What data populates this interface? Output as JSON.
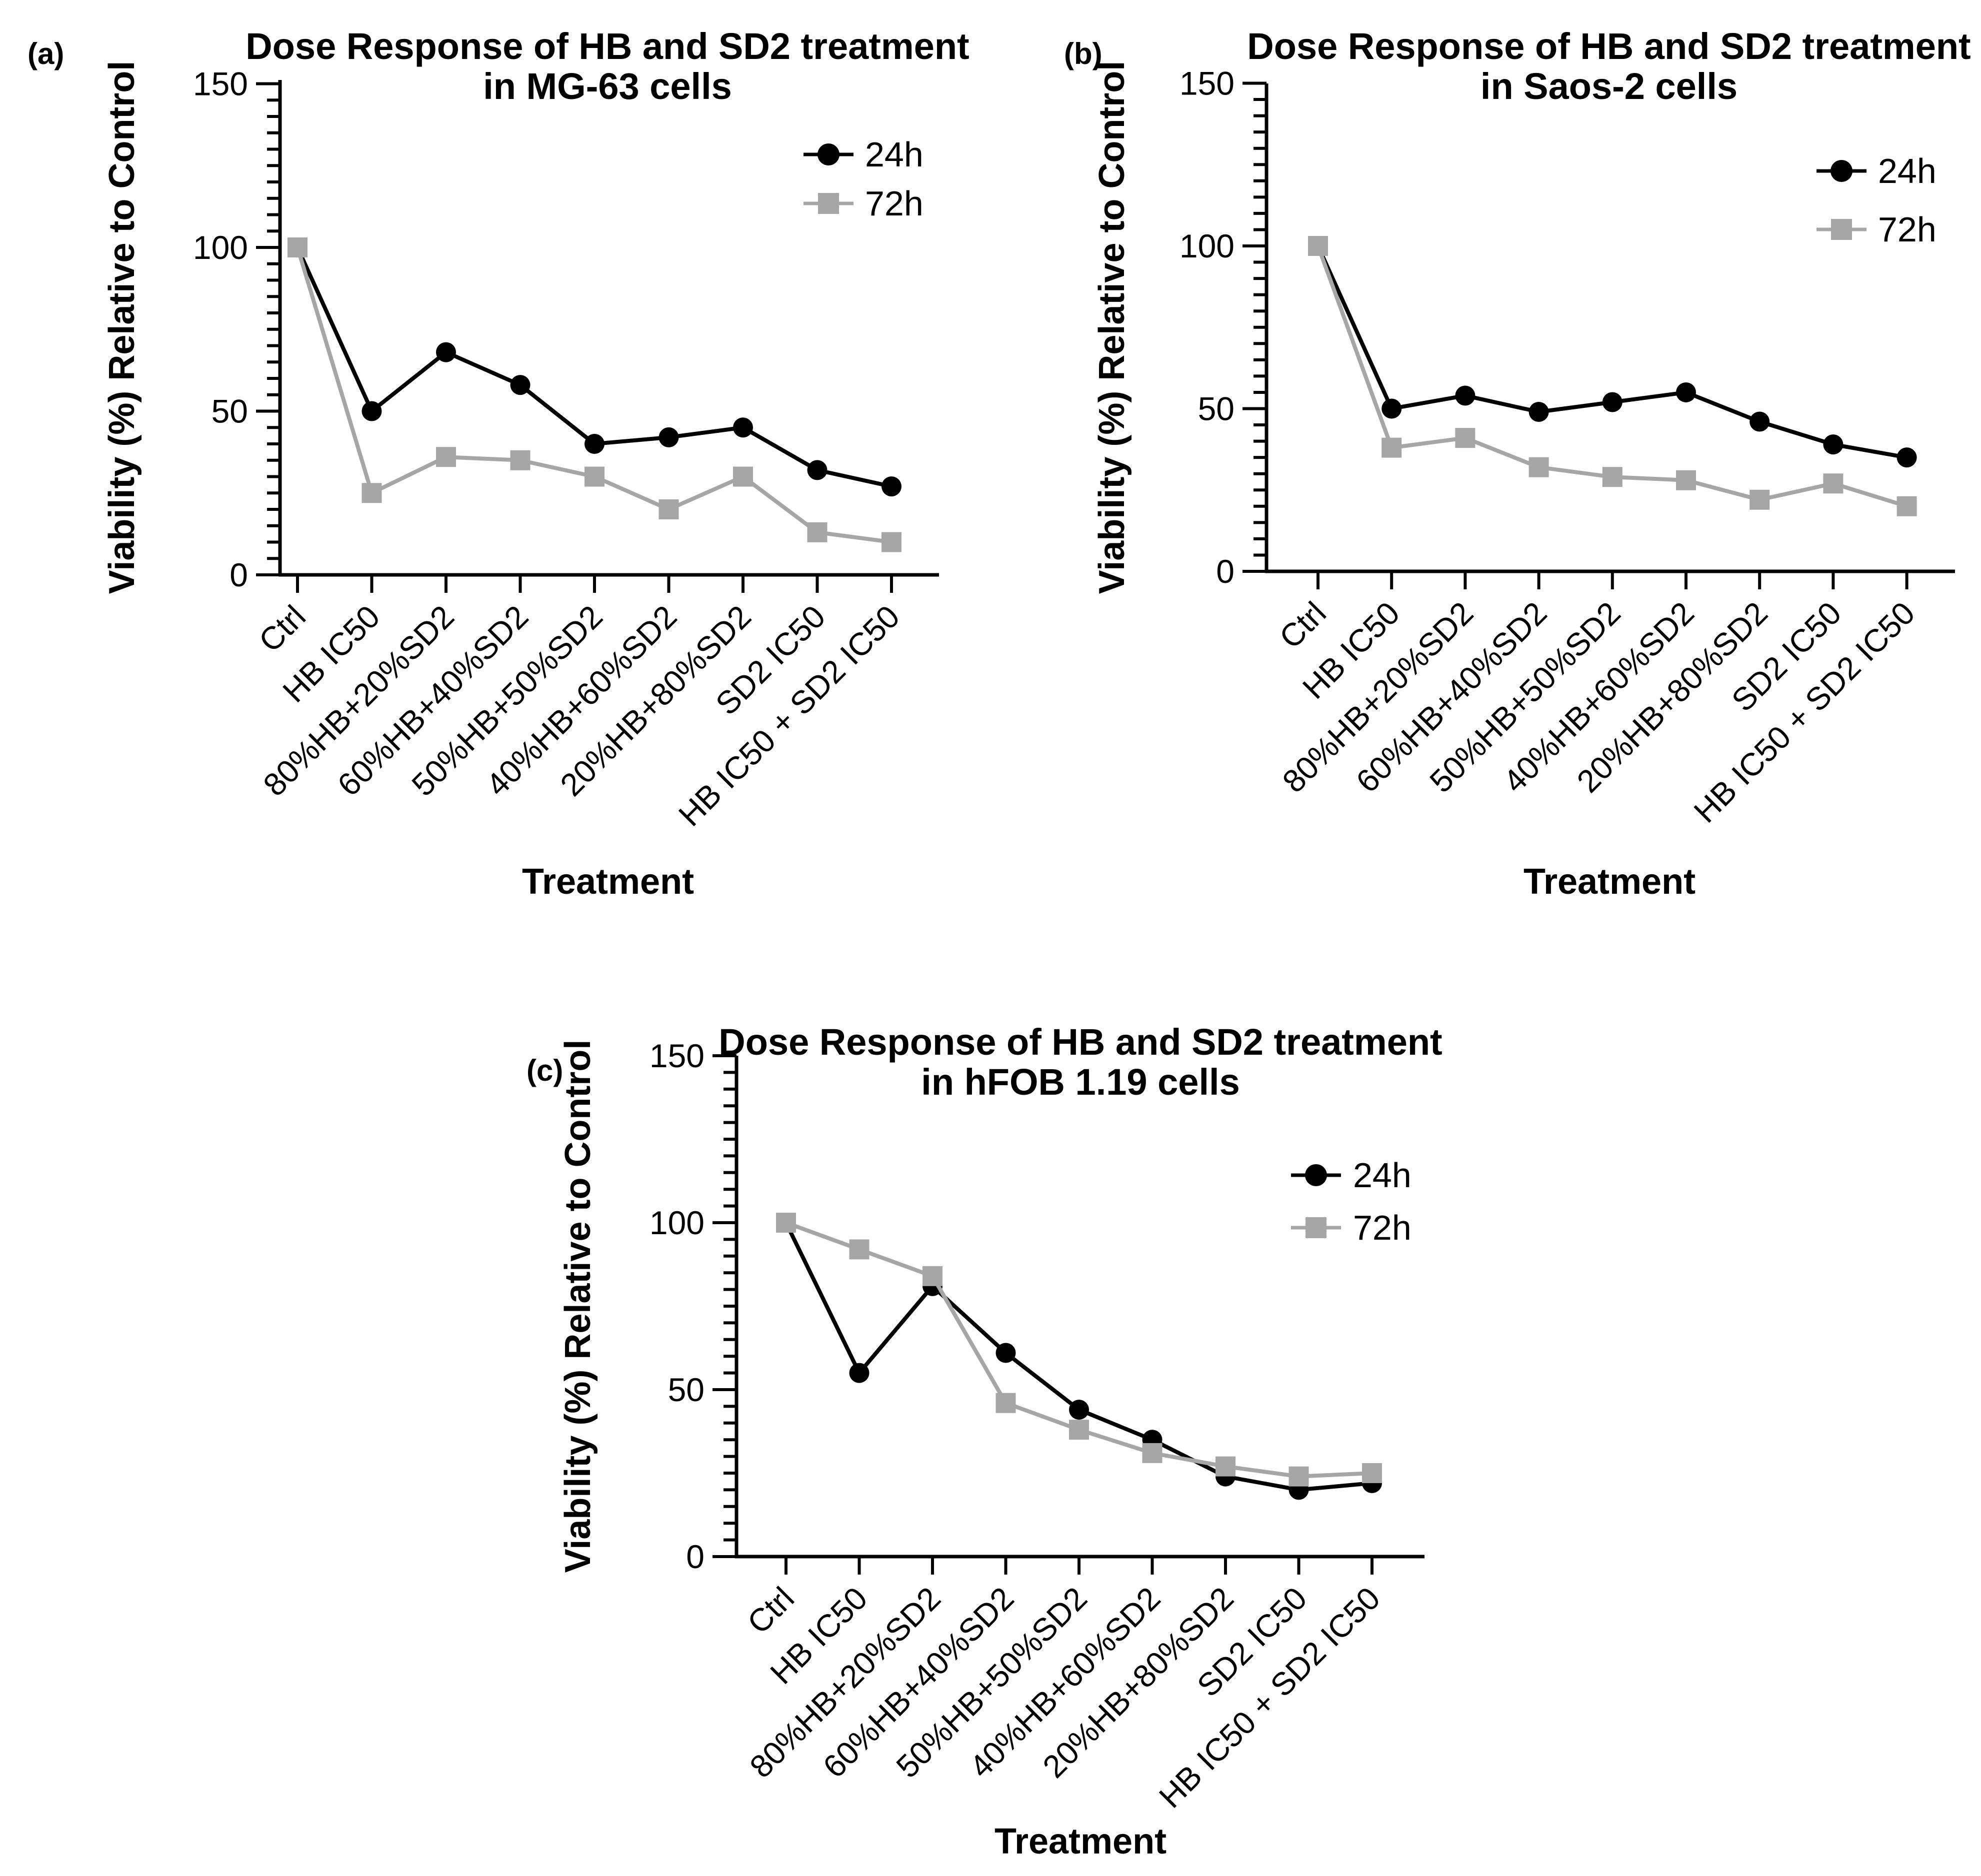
{
  "figure": {
    "background": "#ffffff",
    "series_colors": {
      "24h": "#000000",
      "72h": "#a6a6a6"
    },
    "axis_color": "#000000"
  },
  "chart_data": [
    {
      "type": "line",
      "panel_label": "(a)",
      "title": "Dose Response of HB and SD2 treatment",
      "subtitle": "in MG-63 cells",
      "xlabel": "Treatment",
      "ylabel": "Viability (%) Relative to Control",
      "categories": [
        "Ctrl",
        "HB IC50",
        "80%HB+20%SD2",
        "60%HB+40%SD2",
        "50%HB+50%SD2",
        "40%HB+60%SD2",
        "20%HB+80%SD2",
        "SD2 IC50",
        "HB IC50 + SD2 IC50"
      ],
      "series": [
        {
          "name": "24h",
          "marker": "circle",
          "color": "#000000",
          "values": [
            100,
            50,
            68,
            58,
            40,
            42,
            45,
            32,
            27
          ]
        },
        {
          "name": "72h",
          "marker": "square",
          "color": "#a6a6a6",
          "values": [
            100,
            25,
            36,
            35,
            30,
            20,
            30,
            13,
            10
          ]
        }
      ],
      "ylim": [
        0,
        150
      ],
      "yticks": [
        0,
        50,
        100,
        150
      ],
      "minor_tick_step": 5,
      "grid": false,
      "legend_position": "top-right-inside"
    },
    {
      "type": "line",
      "panel_label": "(b)",
      "title": "Dose Response of HB and SD2 treatment",
      "subtitle": "in Saos-2 cells",
      "xlabel": "Treatment",
      "ylabel": "Viability (%) Relative to Control",
      "categories": [
        "Ctrl",
        "HB IC50",
        "80%HB+20%SD2",
        "60%HB+40%SD2",
        "50%HB+50%SD2",
        "40%HB+60%SD2",
        "20%HB+80%SD2",
        "SD2 IC50",
        "HB IC50 + SD2 IC50"
      ],
      "series": [
        {
          "name": "24h",
          "marker": "circle",
          "color": "#000000",
          "values": [
            100,
            50,
            54,
            49,
            52,
            55,
            46,
            39,
            35
          ]
        },
        {
          "name": "72h",
          "marker": "square",
          "color": "#a6a6a6",
          "values": [
            100,
            38,
            41,
            32,
            29,
            28,
            22,
            27,
            20
          ]
        }
      ],
      "ylim": [
        0,
        150
      ],
      "yticks": [
        0,
        50,
        100,
        150
      ],
      "minor_tick_step": 5,
      "grid": false,
      "legend_position": "top-right-inside"
    },
    {
      "type": "line",
      "panel_label": "(c)",
      "title": "Dose Response of HB and SD2 treatment",
      "subtitle": "in hFOB 1.19 cells",
      "xlabel": "Treatment",
      "ylabel": "Viability (%) Relative to Control",
      "categories": [
        "Ctrl",
        "HB IC50",
        "80%HB+20%SD2",
        "60%HB+40%SD2",
        "50%HB+50%SD2",
        "40%HB+60%SD2",
        "20%HB+80%SD2",
        "SD2 IC50",
        "HB IC50 + SD2 IC50"
      ],
      "series": [
        {
          "name": "24h",
          "marker": "circle",
          "color": "#000000",
          "values": [
            100,
            55,
            81,
            61,
            44,
            35,
            24,
            20,
            22
          ]
        },
        {
          "name": "72h",
          "marker": "square",
          "color": "#a6a6a6",
          "values": [
            100,
            92,
            84,
            46,
            38,
            31,
            27,
            24,
            25
          ]
        }
      ],
      "ylim": [
        0,
        150
      ],
      "yticks": [
        0,
        50,
        100,
        150
      ],
      "minor_tick_step": 5,
      "grid": false,
      "legend_position": "top-right-inside"
    }
  ]
}
